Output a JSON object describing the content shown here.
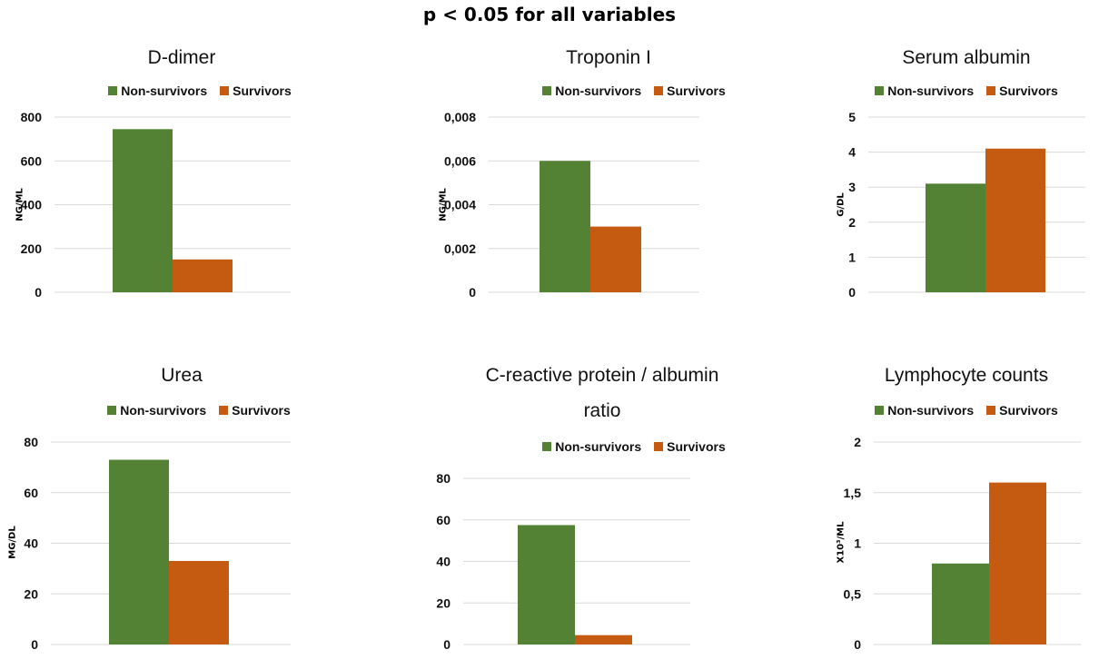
{
  "suptitle": "p < 0.05 for all variables",
  "colors": {
    "non_survivors": "#548235",
    "survivors": "#C55A11",
    "grid": "#d9d9d9"
  },
  "legend": {
    "non_survivors": "Non-survivors",
    "survivors": "Survivors"
  },
  "chart_data": [
    {
      "type": "bar",
      "title": "D-dimer",
      "title_line2": "",
      "ylabel": "NG/ML",
      "ylim": [
        0,
        800
      ],
      "yticks": [
        "0",
        "200",
        "400",
        "600",
        "800"
      ],
      "ytick_values": [
        0,
        200,
        400,
        600,
        800
      ],
      "series": [
        {
          "name": "Non-survivors",
          "values": [
            745
          ]
        },
        {
          "name": "Survivors",
          "values": [
            150
          ]
        }
      ]
    },
    {
      "type": "bar",
      "title": "Troponin I",
      "title_line2": "",
      "ylabel": "NG/ML",
      "ylim": [
        0,
        0.008
      ],
      "yticks": [
        "0",
        "0,002",
        "0,004",
        "0,006",
        "0,008"
      ],
      "ytick_values": [
        0,
        0.002,
        0.004,
        0.006,
        0.008
      ],
      "series": [
        {
          "name": "Non-survivors",
          "values": [
            0.006
          ]
        },
        {
          "name": "Survivors",
          "values": [
            0.003
          ]
        }
      ]
    },
    {
      "type": "bar",
      "title": "Serum albumin",
      "title_line2": "",
      "ylabel": "G/DL",
      "ylim": [
        0,
        5
      ],
      "yticks": [
        "0",
        "1",
        "2",
        "3",
        "4",
        "5"
      ],
      "ytick_values": [
        0,
        1,
        2,
        3,
        4,
        5
      ],
      "series": [
        {
          "name": "Non-survivors",
          "values": [
            3.1
          ]
        },
        {
          "name": "Survivors",
          "values": [
            4.1
          ]
        }
      ]
    },
    {
      "type": "bar",
      "title": "Urea",
      "title_line2": "",
      "ylabel": "MG/DL",
      "ylim": [
        0,
        80
      ],
      "yticks": [
        "0",
        "20",
        "40",
        "60",
        "80"
      ],
      "ytick_values": [
        0,
        20,
        40,
        60,
        80
      ],
      "series": [
        {
          "name": "Non-survivors",
          "values": [
            73
          ]
        },
        {
          "name": "Survivors",
          "values": [
            33
          ]
        }
      ]
    },
    {
      "type": "bar",
      "title": "C-reactive protein / albumin",
      "title_line2": "ratio",
      "ylabel": "",
      "ylim": [
        0,
        80
      ],
      "yticks": [
        "0",
        "20",
        "40",
        "60",
        "80"
      ],
      "ytick_values": [
        0,
        20,
        40,
        60,
        80
      ],
      "series": [
        {
          "name": "Non-survivors",
          "values": [
            57.5
          ]
        },
        {
          "name": "Survivors",
          "values": [
            4.5
          ]
        }
      ]
    },
    {
      "type": "bar",
      "title": "Lymphocyte counts",
      "title_line2": "",
      "ylabel": "X10³/ML",
      "ylim": [
        0,
        2
      ],
      "yticks": [
        "0",
        "0,5",
        "1",
        "1,5",
        "2"
      ],
      "ytick_values": [
        0,
        0.5,
        1,
        1.5,
        2
      ],
      "series": [
        {
          "name": "Non-survivors",
          "values": [
            0.8
          ]
        },
        {
          "name": "Survivors",
          "values": [
            1.6
          ]
        }
      ]
    }
  ]
}
